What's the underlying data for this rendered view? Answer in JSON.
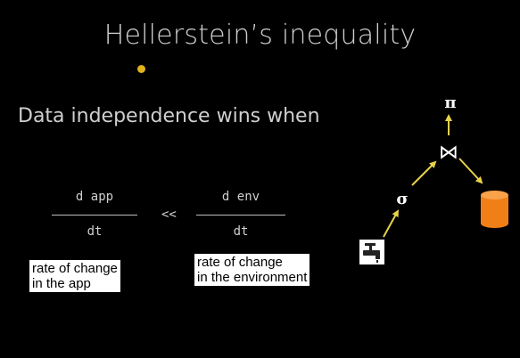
{
  "slide": {
    "title": "Hellerstein’s inequality",
    "subtitle": "Data independence wins when"
  },
  "formula": {
    "left": {
      "numerator": "d app",
      "denominator": "dt"
    },
    "operator": "<<",
    "right": {
      "numerator": "d env",
      "denominator": "dt"
    }
  },
  "annotations": [
    {
      "line1": "rate of change",
      "line2": "in the app"
    },
    {
      "line1": "rate of change",
      "line2": "in the environment"
    }
  ],
  "diagram": {
    "pi_symbol": "π",
    "join_symbol": "⋈",
    "sigma_symbol": "σ",
    "source_icon": "faucet-icon",
    "sink_icon": "database-cylinder-icon",
    "arrow_color": "#e8d24a",
    "database_color": "#f07f18"
  },
  "colors": {
    "background": "#000000",
    "bullet": "#e0b21c"
  }
}
